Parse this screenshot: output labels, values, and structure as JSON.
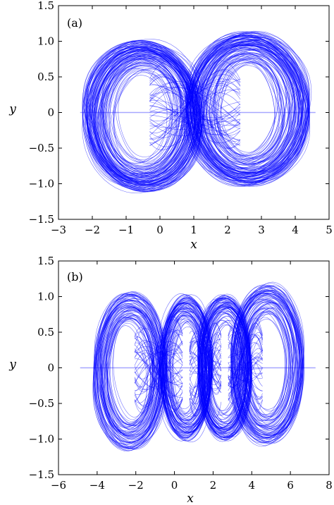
{
  "chart_data": [
    {
      "type": "line",
      "panel_label": "(a)",
      "xlabel": "x",
      "ylabel": "y",
      "xlim": [
        -3,
        5
      ],
      "ylim": [
        -1.5,
        1.5
      ],
      "x_ticks": [
        "−3",
        "−2",
        "−1",
        "0",
        "1",
        "2",
        "3",
        "4",
        "5"
      ],
      "y_ticks": [
        "1.5",
        "1.0",
        "0.5",
        "0",
        "−0.5",
        "−1.0",
        "−1.5"
      ],
      "series_color": "#0000ff",
      "attractor": "two-scroll",
      "lobes": [
        {
          "cx": -0.5,
          "cy": -0.05,
          "rx_in": 0.65,
          "rx_out": 1.8,
          "ry_in": 0.55,
          "ry_out": 1.05
        },
        {
          "cx": 2.6,
          "cy": 0.05,
          "rx_in": 0.75,
          "rx_out": 1.85,
          "ry_in": 0.6,
          "ry_out": 1.05
        }
      ]
    },
    {
      "type": "line",
      "panel_label": "(b)",
      "xlabel": "x",
      "ylabel": "y",
      "xlim": [
        -6,
        8
      ],
      "ylim": [
        -1.5,
        1.5
      ],
      "x_ticks": [
        "−6",
        "−4",
        "−2",
        "0",
        "2",
        "4",
        "6",
        "8"
      ],
      "y_ticks": [
        "1.5",
        "1.0",
        "0.5",
        "0",
        "−0.5",
        "−1.0",
        "−1.5"
      ],
      "series_color": "#0000ff",
      "attractor": "four-scroll",
      "lobes": [
        {
          "cx": -2.3,
          "cy": -0.05,
          "rx_in": 0.8,
          "rx_out": 1.9,
          "ry_in": 0.6,
          "ry_out": 1.1
        },
        {
          "cx": 0.6,
          "cy": 0.0,
          "rx_in": 0.6,
          "rx_out": 1.4,
          "ry_in": 0.55,
          "ry_out": 1.0
        },
        {
          "cx": 2.6,
          "cy": 0.0,
          "rx_in": 0.6,
          "rx_out": 1.4,
          "ry_in": 0.55,
          "ry_out": 1.0
        },
        {
          "cx": 4.8,
          "cy": 0.05,
          "rx_in": 0.8,
          "rx_out": 1.9,
          "ry_in": 0.6,
          "ry_out": 1.1
        }
      ]
    }
  ]
}
